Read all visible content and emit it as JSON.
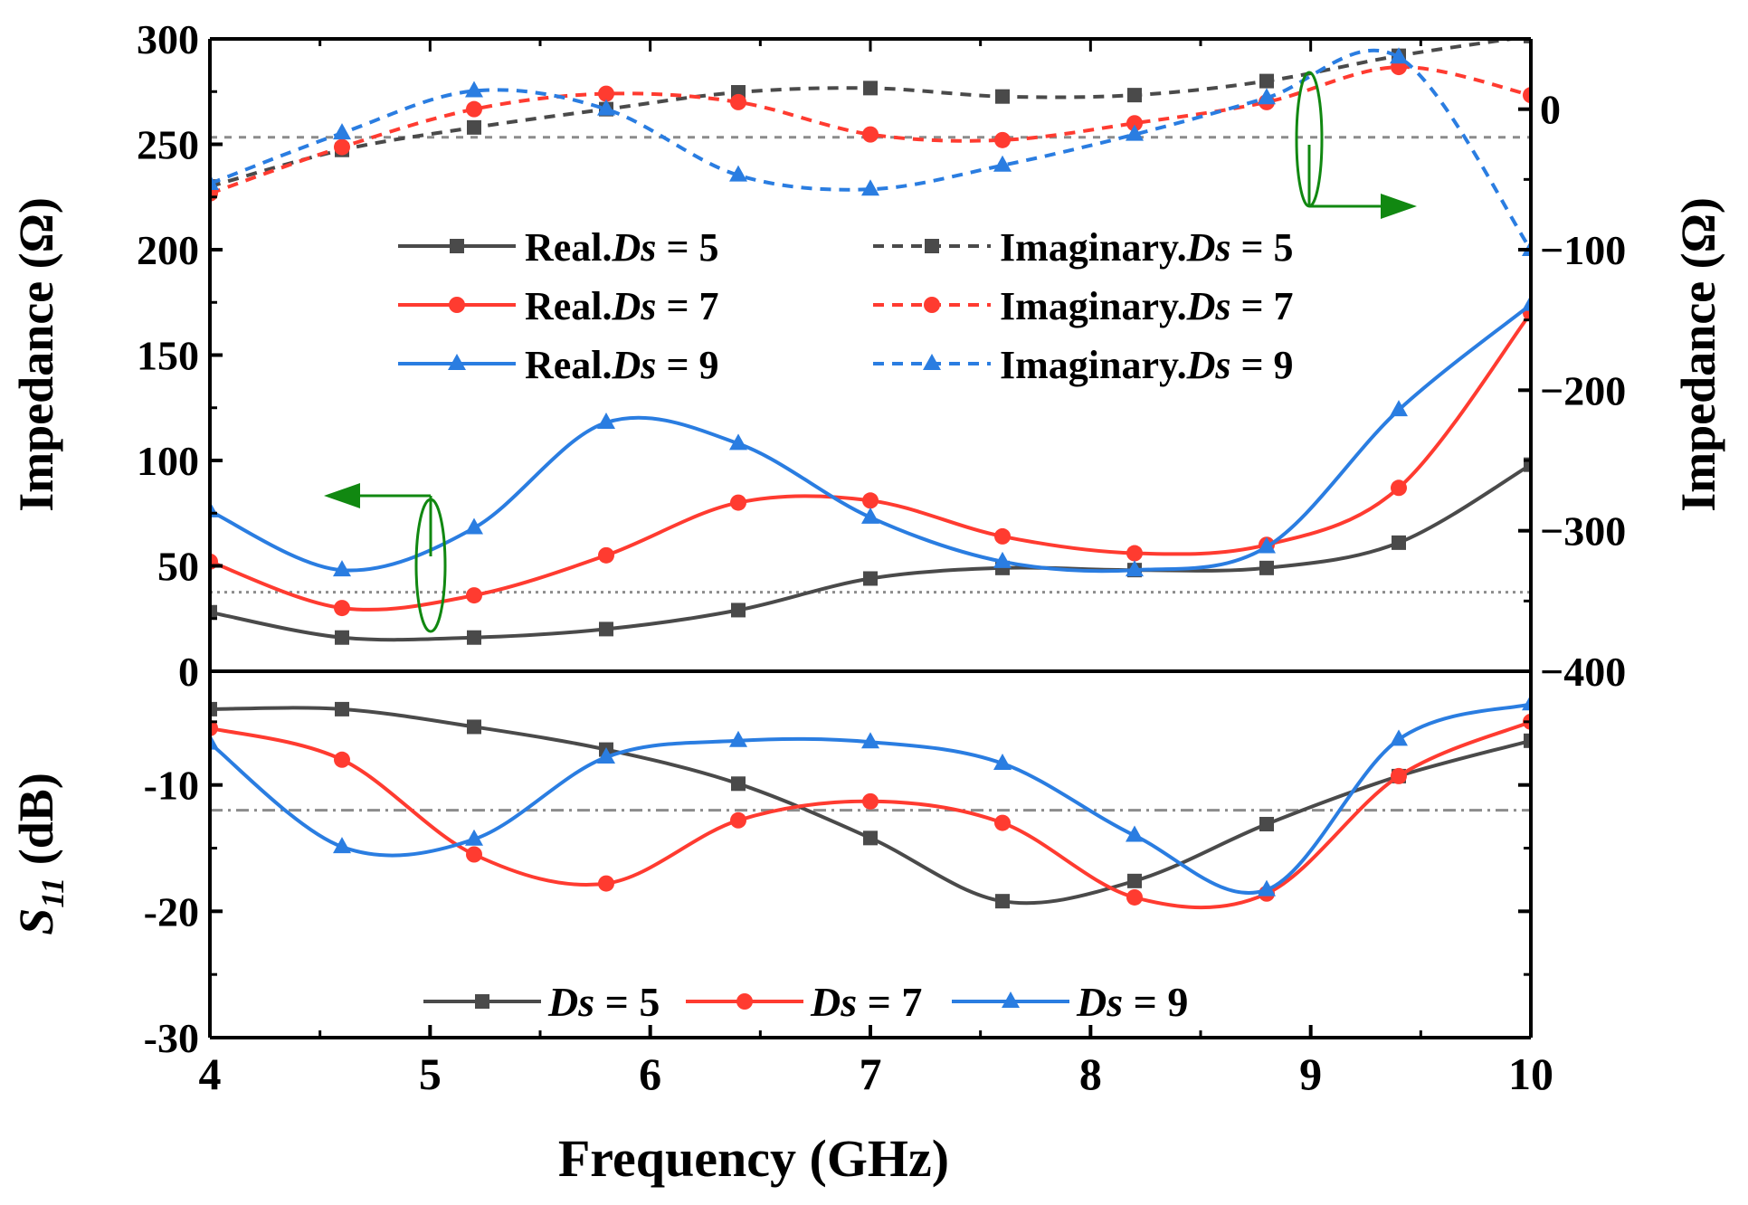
{
  "colors": {
    "black": "#000000",
    "ds5": "#4a4a4a",
    "ds7": "#ff3b30",
    "ds9": "#2a7de1",
    "ref": "#8c8c8c",
    "annotation": "#118811"
  },
  "chart_data": [
    {
      "id": "impedance",
      "type": "line",
      "xlim": [
        4,
        10
      ],
      "ylim": [
        0,
        300
      ],
      "y2lim": [
        -400,
        50
      ],
      "y_ticks": [
        0,
        50,
        100,
        150,
        200,
        250,
        300
      ],
      "y2_ticks": [
        -400,
        -300,
        -200,
        -100,
        0
      ],
      "ylabel": "Impedance (Ω)",
      "y2label": "Impedance (Ω)",
      "ref_lines": [
        {
          "axis": "left",
          "value": 37.5,
          "style": "dotted"
        },
        {
          "axis": "right",
          "value": -20,
          "style": "dashed"
        }
      ],
      "series": [
        {
          "name": "Real.Ds = 5",
          "prefix": "Real.",
          "ds": "Ds",
          "suffix": " = 5",
          "axis": "left",
          "color": "#4a4a4a",
          "marker": "square",
          "dash": false,
          "x": [
            4,
            4.6,
            5.2,
            5.8,
            6.4,
            7,
            7.6,
            8.2,
            8.8,
            9.4,
            10
          ],
          "y": [
            28,
            16,
            16,
            20,
            29,
            44,
            49,
            48,
            49,
            61,
            98
          ]
        },
        {
          "name": "Real.Ds = 7",
          "prefix": "Real.",
          "ds": "Ds",
          "suffix": " = 7",
          "axis": "left",
          "color": "#ff3b30",
          "marker": "circle",
          "dash": false,
          "x": [
            4,
            4.6,
            5.2,
            5.8,
            6.4,
            7,
            7.6,
            8.2,
            8.8,
            9.4,
            10
          ],
          "y": [
            52,
            30,
            36,
            55,
            80,
            81,
            64,
            56,
            60,
            87,
            170
          ]
        },
        {
          "name": "Real.Ds = 9",
          "prefix": "Real.",
          "ds": "Ds",
          "suffix": " = 9",
          "axis": "left",
          "color": "#2a7de1",
          "marker": "triangle",
          "dash": false,
          "x": [
            4,
            4.6,
            5.2,
            5.8,
            6.4,
            7,
            7.6,
            8.2,
            8.8,
            9.4,
            10
          ],
          "y": [
            76,
            48,
            68,
            118,
            108,
            73,
            52,
            48,
            59,
            124,
            174
          ]
        },
        {
          "name": "Imaginary.Ds = 5",
          "prefix": "Imaginary.",
          "ds": "Ds",
          "suffix": " = 5",
          "axis": "right",
          "color": "#4a4a4a",
          "marker": "square",
          "dash": true,
          "x": [
            4,
            4.6,
            5.2,
            5.8,
            6.4,
            7,
            7.6,
            8.2,
            8.8,
            9.4,
            10
          ],
          "y": [
            -55,
            -29,
            -13,
            0,
            12,
            15,
            9,
            10,
            20,
            38,
            52
          ]
        },
        {
          "name": "Imaginary.Ds = 7",
          "prefix": "Imaginary.",
          "ds": "Ds",
          "suffix": " = 7",
          "axis": "right",
          "color": "#ff3b30",
          "marker": "circle",
          "dash": true,
          "x": [
            4,
            4.6,
            5.2,
            5.8,
            6.4,
            7,
            7.6,
            8.2,
            8.8,
            9.4,
            10
          ],
          "y": [
            -60,
            -27,
            0,
            11,
            5,
            -18,
            -22,
            -10,
            5,
            30,
            10
          ]
        },
        {
          "name": "Imaginary.Ds = 9",
          "prefix": "Imaginary.",
          "ds": "Ds",
          "suffix": " = 9",
          "axis": "right",
          "color": "#2a7de1",
          "marker": "triangle",
          "dash": true,
          "x": [
            4,
            4.6,
            5.2,
            5.8,
            6.4,
            7,
            7.6,
            8.2,
            8.8,
            9.4,
            10
          ],
          "y": [
            -53,
            -17,
            13,
            0,
            -47,
            -57,
            -40,
            -18,
            8,
            37,
            -100
          ]
        }
      ]
    },
    {
      "id": "s11",
      "type": "line",
      "xlim": [
        4,
        10
      ],
      "ylim": [
        -30,
        -1
      ],
      "y_ticks": [
        -30,
        -20,
        -10
      ],
      "x_ticks": [
        4,
        5,
        6,
        7,
        8,
        9,
        10
      ],
      "xlabel": "Frequency (GHz)",
      "ylabel_main": "S",
      "ylabel_sub": "11",
      "ylabel_unit": " (dB)",
      "ref_lines": [
        {
          "axis": "left",
          "value": -12,
          "style": "dashdot"
        }
      ],
      "series": [
        {
          "name": "Ds = 5",
          "ds": "Ds",
          "suffix": " = 5",
          "color": "#4a4a4a",
          "marker": "square",
          "x": [
            4,
            4.6,
            5.2,
            5.8,
            6.4,
            7,
            7.6,
            8.2,
            8.8,
            9.4,
            10
          ],
          "y": [
            -4,
            -4,
            -5.4,
            -7.2,
            -9.9,
            -14.2,
            -19.2,
            -17.6,
            -13.1,
            -9.3,
            -6.5
          ]
        },
        {
          "name": "Ds = 7",
          "ds": "Ds",
          "suffix": " = 7",
          "color": "#ff3b30",
          "marker": "circle",
          "x": [
            4,
            4.6,
            5.2,
            5.8,
            6.4,
            7,
            7.6,
            8.2,
            8.8,
            9.4,
            10
          ],
          "y": [
            -5.5,
            -8,
            -15.5,
            -17.8,
            -12.8,
            -11.3,
            -13,
            -18.9,
            -18.6,
            -9.3,
            -5
          ]
        },
        {
          "name": "Ds = 9",
          "ds": "Ds",
          "suffix": " = 9",
          "color": "#2a7de1",
          "marker": "triangle",
          "x": [
            4,
            4.6,
            5.2,
            5.8,
            6.4,
            7,
            7.6,
            8.2,
            8.8,
            9.4,
            10
          ],
          "y": [
            -6.7,
            -14.9,
            -14.3,
            -7.8,
            -6.5,
            -6.6,
            -8.3,
            -14,
            -18.3,
            -6.4,
            -3.6
          ]
        }
      ]
    }
  ]
}
